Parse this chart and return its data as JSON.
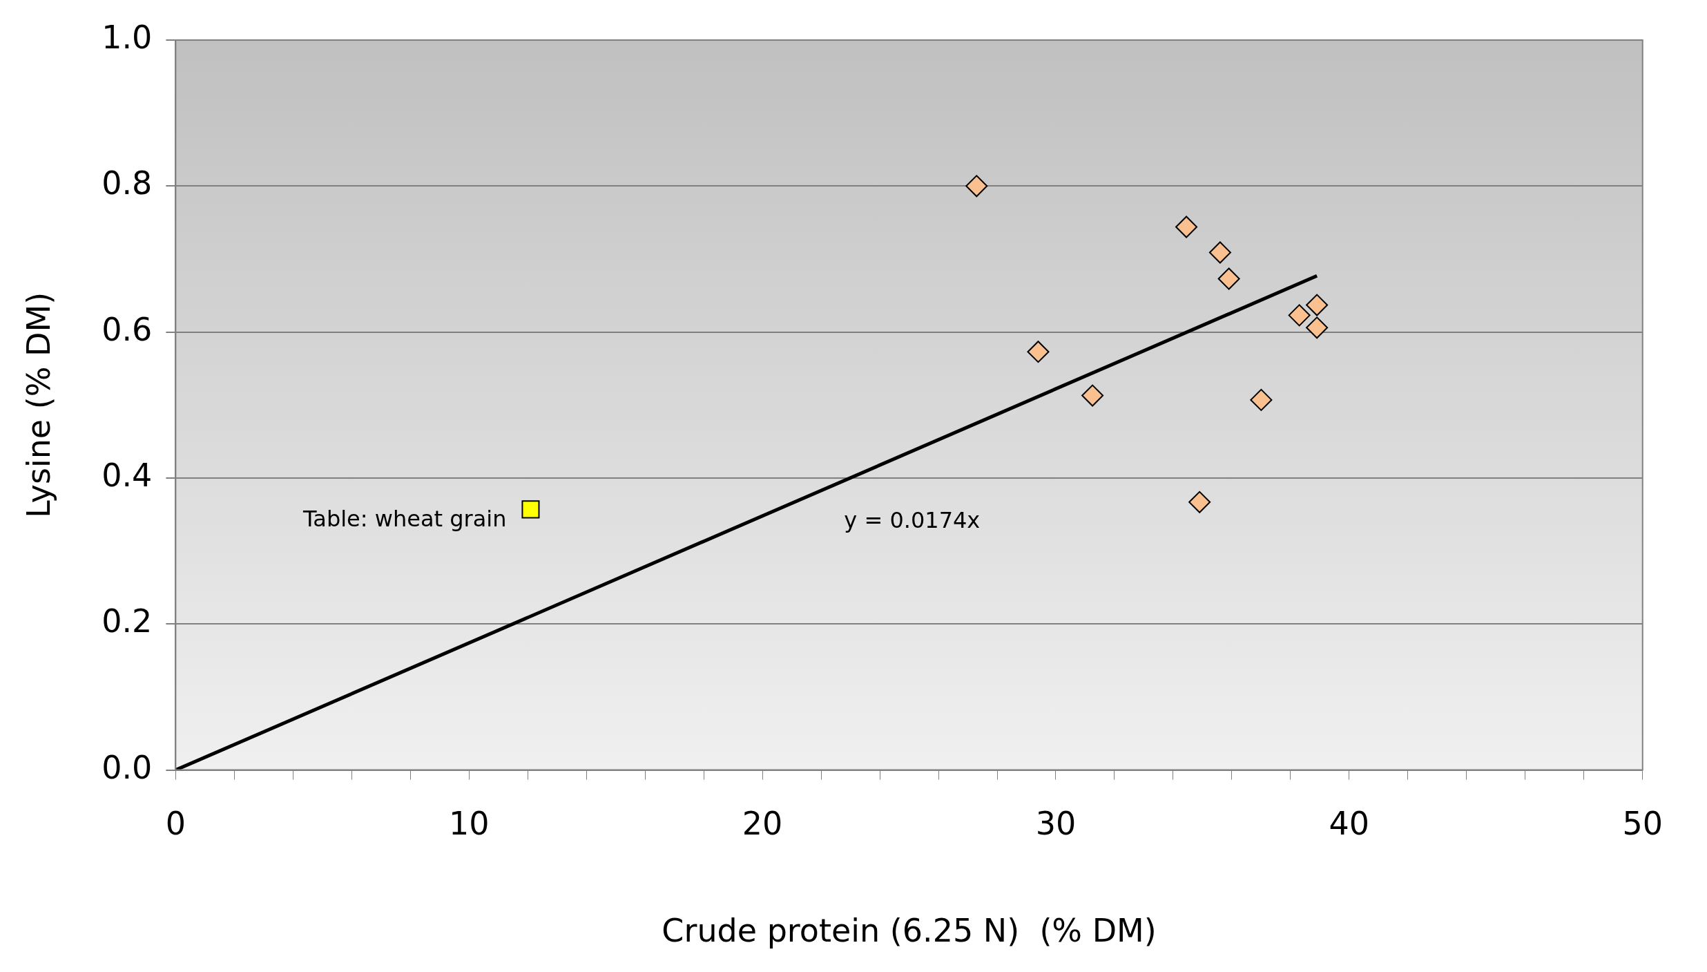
{
  "chart_data": {
    "type": "scatter",
    "xlabel": "Crude protein (6.25 N)  (% DM)",
    "ylabel": "Lysine (% DM)",
    "xlim": [
      0,
      50
    ],
    "xticks": [
      0,
      {
        "value": 2,
        "label": null
      },
      {
        "value": 4,
        "label": null
      },
      {
        "value": 6,
        "label": null
      },
      {
        "value": 8,
        "label": null
      },
      10,
      {
        "value": 12,
        "label": null
      },
      {
        "value": 14,
        "label": null
      },
      {
        "value": 16,
        "label": null
      },
      {
        "value": 18,
        "label": null
      },
      20,
      {
        "value": 22,
        "label": null
      },
      {
        "value": 24,
        "label": null
      },
      {
        "value": 26,
        "label": null
      },
      {
        "value": 28,
        "label": null
      },
      30,
      {
        "value": 32,
        "label": null
      },
      {
        "value": 34,
        "label": null
      },
      {
        "value": 36,
        "label": null
      },
      {
        "value": 38,
        "label": null
      },
      40,
      {
        "value": 42,
        "label": null
      },
      {
        "value": 44,
        "label": null
      },
      {
        "value": 46,
        "label": null
      },
      {
        "value": 48,
        "label": null
      },
      50
    ],
    "ylim": [
      0,
      1
    ],
    "yticks": [
      {
        "value": 0,
        "label": "0.0"
      },
      {
        "value": 0.2,
        "label": "0.2"
      },
      {
        "value": 0.4,
        "label": "0.4"
      },
      {
        "value": 0.6,
        "label": "0.6"
      },
      {
        "value": 0.8,
        "label": "0.8"
      },
      {
        "value": 1,
        "label": "1.0"
      }
    ],
    "grid": "y",
    "legend": false,
    "series": [
      {
        "color": "#fac090",
        "marker": "diamond",
        "x": [
          27.3,
          29.4,
          31.25,
          34.45,
          35.6,
          35.9,
          34.9,
          37.0,
          38.3,
          38.9,
          38.9
        ],
        "values": [
          0.8,
          0.573,
          0.513,
          0.744,
          0.709,
          0.673,
          0.367,
          0.507,
          0.623,
          0.637,
          0.606
        ]
      },
      {
        "color": "#ffff00",
        "marker": "square",
        "x": [
          12.1
        ],
        "values": [
          0.357
        ]
      },
      {
        "type": "line",
        "color": "#000000",
        "marker": "none",
        "x": [
          0,
          38.9
        ],
        "values": [
          0,
          0.677
        ]
      }
    ],
    "annotations": [
      {
        "text": "Table: wheat grain",
        "x": 12.1,
        "y": 0.357
      },
      "y = 0.0174x"
    ]
  }
}
